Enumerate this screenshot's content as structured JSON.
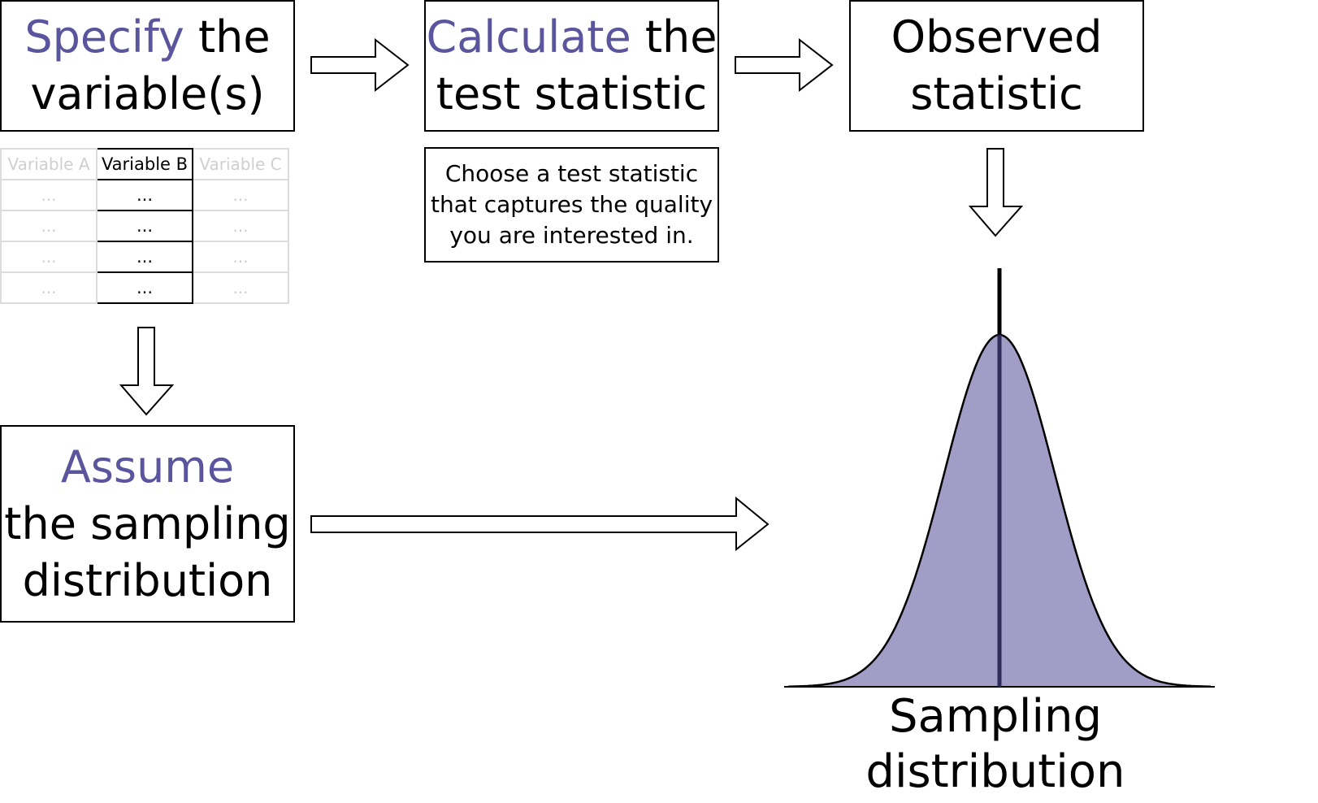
{
  "steps": {
    "specify": {
      "highlight": "Specify",
      "rest1": " the",
      "line2": "variable(s)"
    },
    "calculate": {
      "highlight": "Calculate",
      "rest1": " the",
      "line2": "test statistic",
      "note": [
        "Choose a test statistic",
        "that captures the quality",
        "you are interested in."
      ]
    },
    "observed": {
      "line1": "Observed",
      "line2": "statistic"
    },
    "assume": {
      "highlight": "Assume",
      "line2": "the sampling",
      "line3": "distribution"
    }
  },
  "table": {
    "headers": [
      "Variable A",
      "Variable B",
      "Variable C"
    ],
    "active_column": 1,
    "rows": [
      [
        "...",
        "...",
        "..."
      ],
      [
        "...",
        "...",
        "..."
      ],
      [
        "...",
        "...",
        "..."
      ],
      [
        "...",
        "...",
        "..."
      ]
    ]
  },
  "distribution": {
    "label": "Sampling distribution",
    "shape": "normal",
    "observed_marker": "center"
  },
  "colors": {
    "accent": "#5a559c",
    "curve_fill": "#a19dc6",
    "marker": "#2f2b58",
    "faded_border": "#dcdcdc",
    "faded_text": "#cfcfcf"
  },
  "icons": [
    "right-arrow",
    "down-arrow"
  ]
}
